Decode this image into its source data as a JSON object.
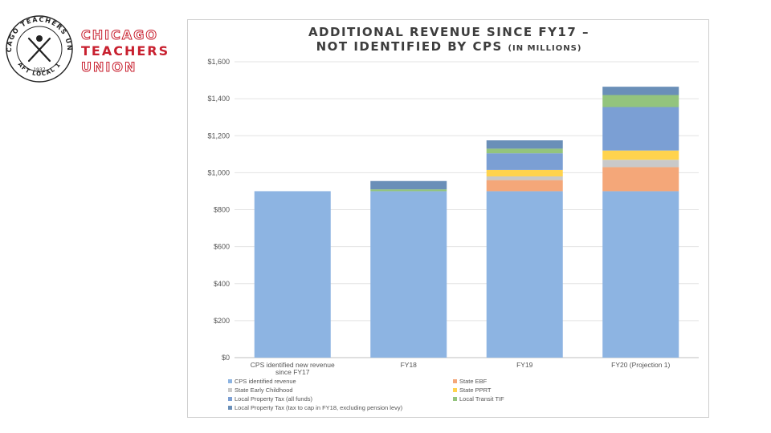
{
  "logo": {
    "brand_lines": [
      "CHICAGO",
      "TEACHERS",
      "UNION"
    ],
    "seal_text_top": "CHICAGO TEACHERS UNION",
    "seal_text_bottom": "AFT LOCAL 1",
    "seal_year": "1937",
    "brand_color": "#c8202f"
  },
  "chart_data": {
    "type": "bar",
    "stacked": true,
    "title_line1": "ADDITIONAL REVENUE SINCE FY17 –",
    "title_line2_main": "NOT IDENTIFIED BY CPS",
    "title_line2_small": "(IN MILLIONS)",
    "categories": [
      "CPS identified new revenue since FY17",
      "FY18",
      "FY19",
      "FY20 (Projection 1)"
    ],
    "ylim": [
      0,
      1600
    ],
    "yticks": [
      0,
      200,
      400,
      600,
      800,
      1000,
      1200,
      1400,
      1600
    ],
    "ytick_labels": [
      "$0",
      "$200",
      "$400",
      "$600",
      "$800",
      "$1,000",
      "$1,200",
      "$1,400",
      "$1,600"
    ],
    "gridlines": true,
    "legend_position": "bottom",
    "series": [
      {
        "name": "CPS identified revenue",
        "color": "#8db4e2",
        "values": [
          900,
          900,
          900,
          900
        ]
      },
      {
        "name": "State EBF",
        "color": "#f4a779",
        "values": [
          0,
          0,
          60,
          130
        ]
      },
      {
        "name": "State Early Childhood",
        "color": "#c9c9c9",
        "values": [
          0,
          0,
          20,
          40
        ]
      },
      {
        "name": "State PPRT",
        "color": "#ffd34e",
        "values": [
          0,
          0,
          35,
          50
        ]
      },
      {
        "name": "Local Property Tax (all funds)",
        "color": "#7b9fd4",
        "values": [
          0,
          0,
          90,
          235
        ]
      },
      {
        "name": "Local Transit TIF",
        "color": "#93c47d",
        "values": [
          0,
          10,
          25,
          65
        ]
      },
      {
        "name": "Local Property Tax (tax to cap in FY18, excluding pension levy)",
        "color": "#6a8fb8",
        "values": [
          0,
          45,
          45,
          45
        ]
      }
    ]
  }
}
